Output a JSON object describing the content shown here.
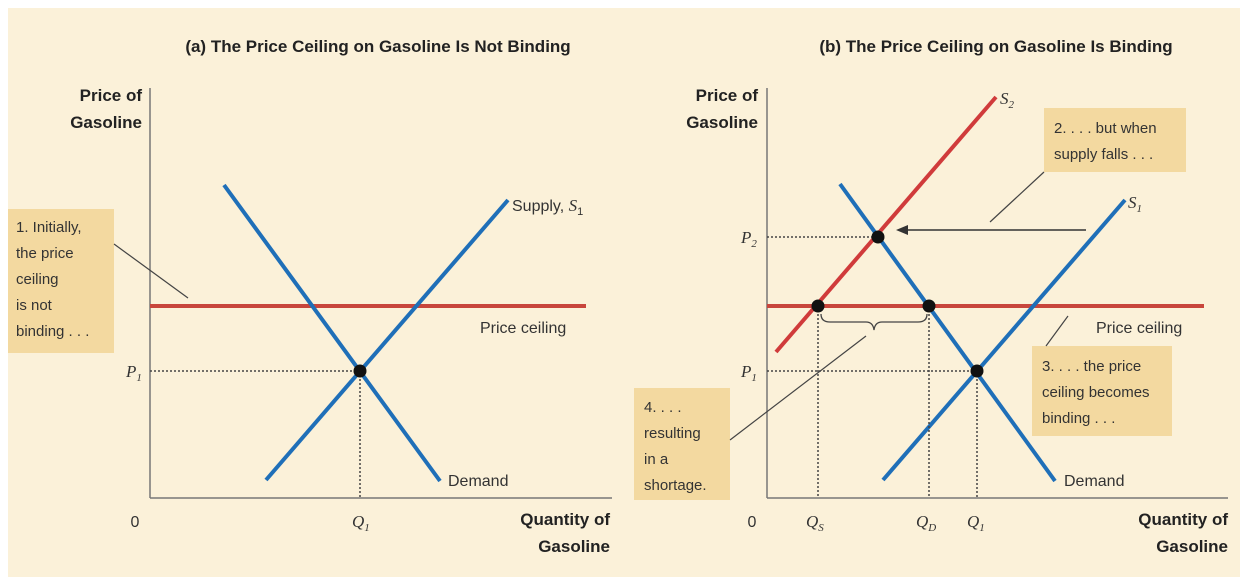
{
  "panel_a": {
    "title": "(a) The Price Ceiling on Gasoline Is Not Binding",
    "y_axis_label": [
      "Price of",
      "Gasoline"
    ],
    "x_axis_label": [
      "Quantity of",
      "Gasoline"
    ],
    "origin": "0",
    "p1": "P",
    "p1_sub": "1",
    "q1": "Q",
    "q1_sub": "1",
    "supply_label": "Supply, ",
    "supply_s": "S",
    "supply_sub": "1",
    "demand_label": "Demand",
    "ceiling_label": "Price ceiling",
    "note1": [
      "1. Initially,",
      "the price",
      "ceiling",
      "is not",
      "binding . . ."
    ]
  },
  "panel_b": {
    "title": "(b) The Price Ceiling on Gasoline Is Binding",
    "y_axis_label": [
      "Price of",
      "Gasoline"
    ],
    "x_axis_label": [
      "Quantity of",
      "Gasoline"
    ],
    "origin": "0",
    "p1": "P",
    "p1_sub": "1",
    "p2": "P",
    "p2_sub": "2",
    "qs": "Q",
    "qs_sub": "S",
    "qd": "Q",
    "qd_sub": "D",
    "q1": "Q",
    "q1_sub": "1",
    "s1": "S",
    "s1_sub": "1",
    "s2": "S",
    "s2_sub": "2",
    "demand_label": "Demand",
    "ceiling_label": "Price ceiling",
    "note2": [
      "2. . . . but when",
      "supply falls . . ."
    ],
    "note3": [
      "3. . . . the price",
      "ceiling becomes",
      "binding . . ."
    ],
    "note4": [
      "4. . . .",
      "resulting",
      "in a",
      "shortage."
    ]
  },
  "colors": {
    "background": "#fbf1d9",
    "note_box": "#f3d9a0",
    "supply_demand": "#1f6fb8",
    "ceiling": "#c8463c",
    "s2": "#d03b3b"
  }
}
